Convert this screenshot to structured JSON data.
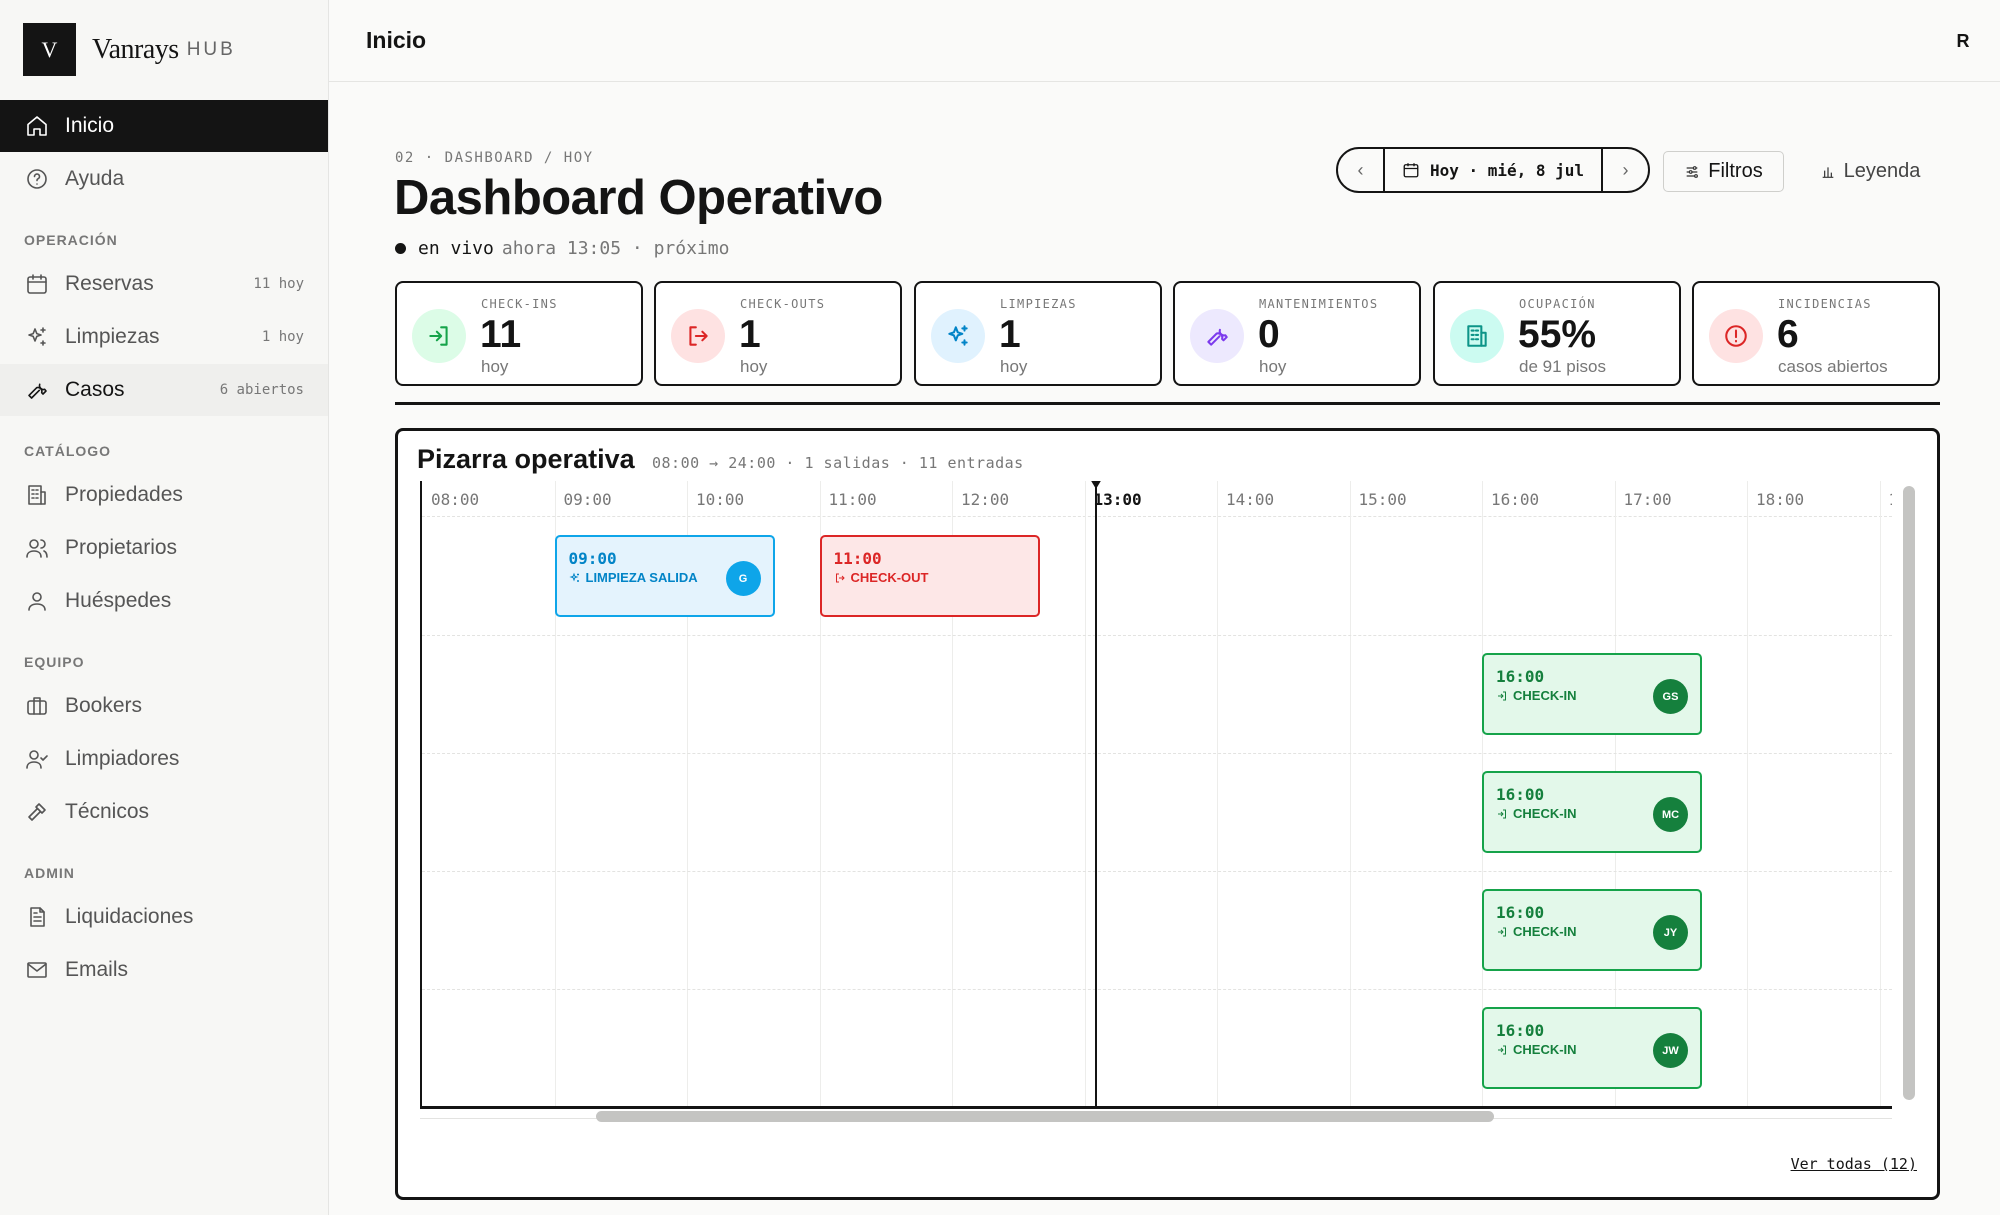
{
  "brand": {
    "mark": "V",
    "name": "Vanrays",
    "suffix": "HUB"
  },
  "sidebar": {
    "items": [
      {
        "label": "Inicio",
        "icon": "home-icon"
      },
      {
        "label": "Ayuda",
        "icon": "help-circle-icon"
      }
    ],
    "sections": [
      {
        "title": "OPERACIÓN",
        "items": [
          {
            "label": "Reservas",
            "icon": "calendar-icon",
            "count": "11 hoy"
          },
          {
            "label": "Limpiezas",
            "icon": "sparkles-icon",
            "count": "1 hoy"
          },
          {
            "label": "Casos",
            "icon": "wrench-icon",
            "count": "6 abiertos"
          }
        ]
      },
      {
        "title": "CATÁLOGO",
        "items": [
          {
            "label": "Propiedades",
            "icon": "building-icon"
          },
          {
            "label": "Propietarios",
            "icon": "users-icon"
          },
          {
            "label": "Huéspedes",
            "icon": "user-icon"
          }
        ]
      },
      {
        "title": "EQUIPO",
        "items": [
          {
            "label": "Bookers",
            "icon": "briefcase-icon"
          },
          {
            "label": "Limpiadores",
            "icon": "user-check-icon"
          },
          {
            "label": "Técnicos",
            "icon": "hammer-icon"
          }
        ]
      },
      {
        "title": "ADMIN",
        "items": [
          {
            "label": "Liquidaciones",
            "icon": "file-text-icon"
          },
          {
            "label": "Emails",
            "icon": "mail-icon"
          }
        ]
      }
    ]
  },
  "topbar": {
    "title": "Inicio",
    "avatar": "R"
  },
  "header": {
    "breadcrumb": "02 · DASHBOARD / HOY",
    "title": "Dashboard Operativo",
    "live_label": "en vivo",
    "live_detail": "ahora 13:05 · próximo",
    "date_label": "Hoy · mié, 8 jul",
    "filters_label": "Filtros",
    "legend_label": "Leyenda"
  },
  "stats": [
    {
      "label": "CHECK-INS",
      "value": "11",
      "sub": "hoy",
      "icon": "log-in-icon",
      "color": "#16a34a",
      "bg": "#dcfce7"
    },
    {
      "label": "CHECK-OUTS",
      "value": "1",
      "sub": "hoy",
      "icon": "log-out-icon",
      "color": "#dc2626",
      "bg": "#fee2e2"
    },
    {
      "label": "LIMPIEZAS",
      "value": "1",
      "sub": "hoy",
      "icon": "sparkles-icon",
      "color": "#0284c7",
      "bg": "#e0f2fe"
    },
    {
      "label": "MANTENIMIENTOS",
      "value": "0",
      "sub": "hoy",
      "icon": "wrench-icon",
      "color": "#7c3aed",
      "bg": "#ede9fe"
    },
    {
      "label": "OCUPACIÓN",
      "value": "55%",
      "sub": "de 91 pisos",
      "icon": "building-icon",
      "color": "#0d9488",
      "bg": "#ccfbf1"
    },
    {
      "label": "INCIDENCIAS",
      "value": "6",
      "sub": "casos abiertos",
      "icon": "alert-circle-icon",
      "color": "#dc2626",
      "bg": "#fee2e2"
    }
  ],
  "board": {
    "title": "Pizarra operativa",
    "meta": "08:00 → 24:00 · 1 salidas · 11 entradas",
    "hours": [
      "08:00",
      "09:00",
      "10:00",
      "11:00",
      "12:00",
      "13:00",
      "14:00",
      "15:00",
      "16:00",
      "17:00",
      "18:00",
      "1"
    ],
    "current_hour": "13:00",
    "view_all": "Ver todas (12)",
    "events": [
      {
        "time": "09:00",
        "kind": "LIMPIEZA SALIDA",
        "type": "clean",
        "who": "G",
        "row": 0
      },
      {
        "time": "11:00",
        "kind": "CHECK-OUT",
        "type": "out",
        "who": "",
        "row": 0
      },
      {
        "time": "16:00",
        "kind": "CHECK-IN",
        "type": "in",
        "who": "GS",
        "row": 1
      },
      {
        "time": "16:00",
        "kind": "CHECK-IN",
        "type": "in",
        "who": "MC",
        "row": 2
      },
      {
        "time": "16:00",
        "kind": "CHECK-IN",
        "type": "in",
        "who": "JY",
        "row": 3
      },
      {
        "time": "16:00",
        "kind": "CHECK-IN",
        "type": "in",
        "who": "JW",
        "row": 4
      }
    ]
  }
}
